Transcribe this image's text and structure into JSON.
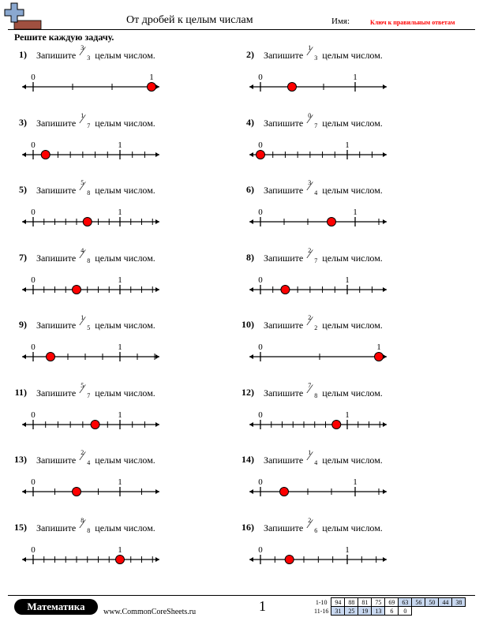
{
  "header": {
    "title": "От дробей к целым числам",
    "name_label": "Имя:",
    "answer_key": "Ключ к правильным ответам",
    "instructions": "Решите каждую задачу."
  },
  "colors": {
    "marker": "#ff0000",
    "key_text": "#ff0000",
    "logo_blue": "#8aa8d0",
    "logo_brown": "#a05040",
    "score_blue": "#c8d8f0"
  },
  "problems": [
    {
      "num": "1)",
      "pre": "Запишите",
      "numerator": "3",
      "denominator": "3",
      "post": "целым числом.",
      "label0": "0",
      "label1": "1",
      "answer_fraction": 1.0
    },
    {
      "num": "2)",
      "pre": "Запишите",
      "numerator": "1",
      "denominator": "3",
      "post": "целым числом.",
      "label0": "0",
      "label1": "1",
      "answer_fraction": 0.3333
    },
    {
      "num": "3)",
      "pre": "Запишите",
      "numerator": "1",
      "denominator": "7",
      "post": "целым числом.",
      "label0": "0",
      "label1": "1",
      "answer_fraction": 0.1429
    },
    {
      "num": "4)",
      "pre": "Запишите",
      "numerator": "0",
      "denominator": "7",
      "post": "целым числом.",
      "label0": "0",
      "label1": "1",
      "answer_fraction": 0.0
    },
    {
      "num": "5)",
      "pre": "Запишите",
      "numerator": "5",
      "denominator": "8",
      "post": "целым числом.",
      "label0": "0",
      "label1": "1",
      "answer_fraction": 0.625
    },
    {
      "num": "6)",
      "pre": "Запишите",
      "numerator": "3",
      "denominator": "4",
      "post": "целым числом.",
      "label0": "0",
      "label1": "1",
      "answer_fraction": 0.75
    },
    {
      "num": "7)",
      "pre": "Запишите",
      "numerator": "4",
      "denominator": "8",
      "post": "целым числом.",
      "label0": "0",
      "label1": "1",
      "answer_fraction": 0.5
    },
    {
      "num": "8)",
      "pre": "Запишите",
      "numerator": "2",
      "denominator": "7",
      "post": "целым числом.",
      "label0": "0",
      "label1": "1",
      "answer_fraction": 0.2857
    },
    {
      "num": "9)",
      "pre": "Запишите",
      "numerator": "1",
      "denominator": "5",
      "post": "целым числом.",
      "label0": "0",
      "label1": "1",
      "answer_fraction": 0.2
    },
    {
      "num": "10)",
      "pre": "Запишите",
      "numerator": "2",
      "denominator": "2",
      "post": "целым числом.",
      "label0": "0",
      "label1": "1",
      "answer_fraction": 1.0
    },
    {
      "num": "11)",
      "pre": "Запишите",
      "numerator": "5",
      "denominator": "7",
      "post": "целым числом.",
      "label0": "0",
      "label1": "1",
      "answer_fraction": 0.7143
    },
    {
      "num": "12)",
      "pre": "Запишите",
      "numerator": "7",
      "denominator": "8",
      "post": "целым числом.",
      "label0": "0",
      "label1": "1",
      "answer_fraction": 0.875
    },
    {
      "num": "13)",
      "pre": "Запишите",
      "numerator": "2",
      "denominator": "4",
      "post": "целым числом.",
      "label0": "0",
      "label1": "1",
      "answer_fraction": 0.5
    },
    {
      "num": "14)",
      "pre": "Запишите",
      "numerator": "1",
      "denominator": "4",
      "post": "целым числом.",
      "label0": "0",
      "label1": "1",
      "answer_fraction": 0.25
    },
    {
      "num": "15)",
      "pre": "Запишите",
      "numerator": "8",
      "denominator": "8",
      "post": "целым числом.",
      "label0": "0",
      "label1": "1",
      "answer_fraction": 1.0
    },
    {
      "num": "16)",
      "pre": "Запишите",
      "numerator": "2",
      "denominator": "6",
      "post": "целым числом.",
      "label0": "0",
      "label1": "1",
      "answer_fraction": 0.3333
    }
  ],
  "footer": {
    "brand": "Математика",
    "site": "www.CommonCoreSheets.ru",
    "page": "1",
    "score_rows": [
      {
        "label": "1-10",
        "cells": [
          "94",
          "88",
          "81",
          "75",
          "69",
          "63",
          "56",
          "50",
          "44",
          "38"
        ],
        "blue_from": 5
      },
      {
        "label": "11-16",
        "cells": [
          "31",
          "25",
          "19",
          "13",
          "6",
          "0"
        ],
        "blue_from": 0,
        "blue_to": 4
      }
    ]
  }
}
